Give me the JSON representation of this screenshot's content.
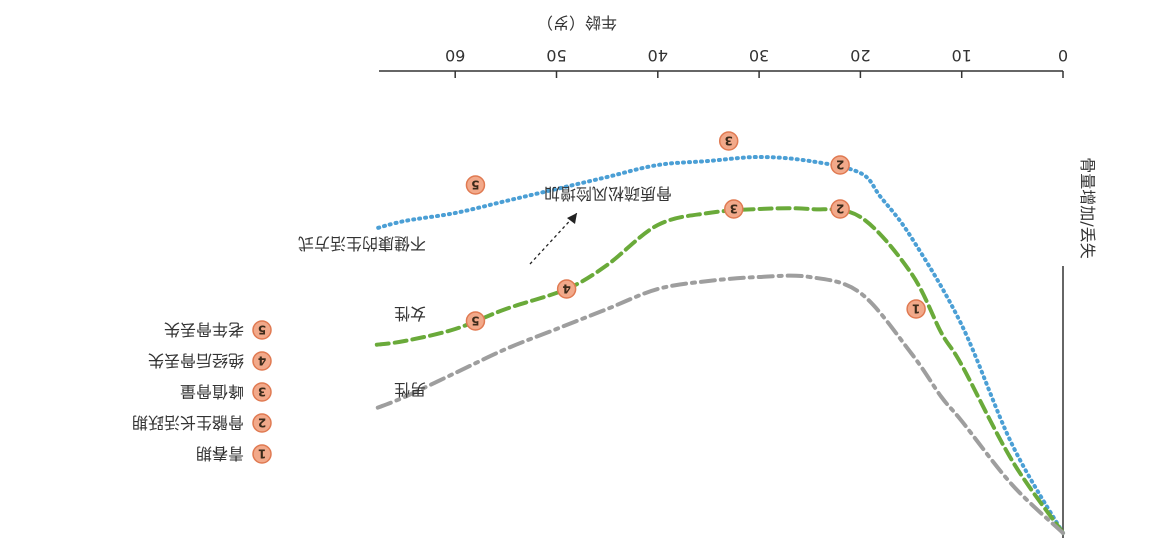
{
  "chart_data": {
    "type": "line",
    "rotation": "image shown rotated 180 degrees",
    "xlabel": "年龄（岁）",
    "ylabel": "骨量增加/丢失",
    "x_ticks": [
      0,
      10,
      20,
      30,
      40,
      50,
      60
    ],
    "xlim": [
      0,
      70
    ],
    "ylim": [
      0,
      100
    ],
    "grid": false,
    "series": [
      {
        "name": "男性",
        "color": "#4b9fd5",
        "style": "dotted",
        "x": [
          0,
          5,
          10,
          15,
          18,
          20,
          25,
          30,
          35,
          40,
          45,
          50,
          55,
          60,
          65,
          68
        ],
        "y": [
          0,
          22,
          52,
          74,
          84,
          90,
          93,
          94,
          93,
          92,
          89,
          86,
          83,
          80,
          78,
          76
        ]
      },
      {
        "name": "女性",
        "color": "#6aaa3a",
        "style": "dashed",
        "x": [
          0,
          5,
          10,
          12,
          15,
          20,
          25,
          30,
          35,
          40,
          45,
          49,
          55,
          60,
          65,
          68
        ],
        "y": [
          0,
          18,
          42,
          50,
          65,
          79,
          81,
          81,
          80,
          77,
          67,
          61,
          56,
          51,
          48,
          47
        ]
      },
      {
        "name": "不健康的生活方式",
        "color": "#9e9e9e",
        "style": "dashdot",
        "x": [
          0,
          5,
          10,
          12,
          15,
          20,
          25,
          30,
          35,
          40,
          45,
          50,
          55,
          60,
          65,
          68
        ],
        "y": [
          0,
          12,
          28,
          34,
          45,
          60,
          64,
          64,
          63,
          61,
          56,
          51,
          46,
          40,
          34,
          31
        ]
      }
    ],
    "annotations": [
      {
        "text": "骨质疏松风险增加",
        "arrow": true
      }
    ],
    "markers": [
      {
        "number": "1",
        "x": 14.5,
        "y": 56
      },
      {
        "number": "2",
        "x": 22,
        "y": 81
      },
      {
        "number": "3",
        "x": 32.5,
        "y": 81
      },
      {
        "number": "4",
        "x": 49,
        "y": 61
      },
      {
        "number": "5",
        "x": 58,
        "y": 53
      },
      {
        "number": "2",
        "x": 22,
        "y": 92
      },
      {
        "number": "3",
        "x": 33,
        "y": 98
      },
      {
        "number": "5",
        "x": 58,
        "y": 87
      }
    ],
    "legend": {
      "placement": "left",
      "items": [
        {
          "number": "1",
          "label": "青春期"
        },
        {
          "number": "2",
          "label": "骨骼生长活跃期"
        },
        {
          "number": "3",
          "label": "峰值骨量"
        },
        {
          "number": "4",
          "label": "绝经后骨丢失"
        },
        {
          "number": "5",
          "label": "老年骨丢失"
        }
      ]
    },
    "badge_color": "#f2a98a",
    "badge_border": "#e07a52"
  }
}
